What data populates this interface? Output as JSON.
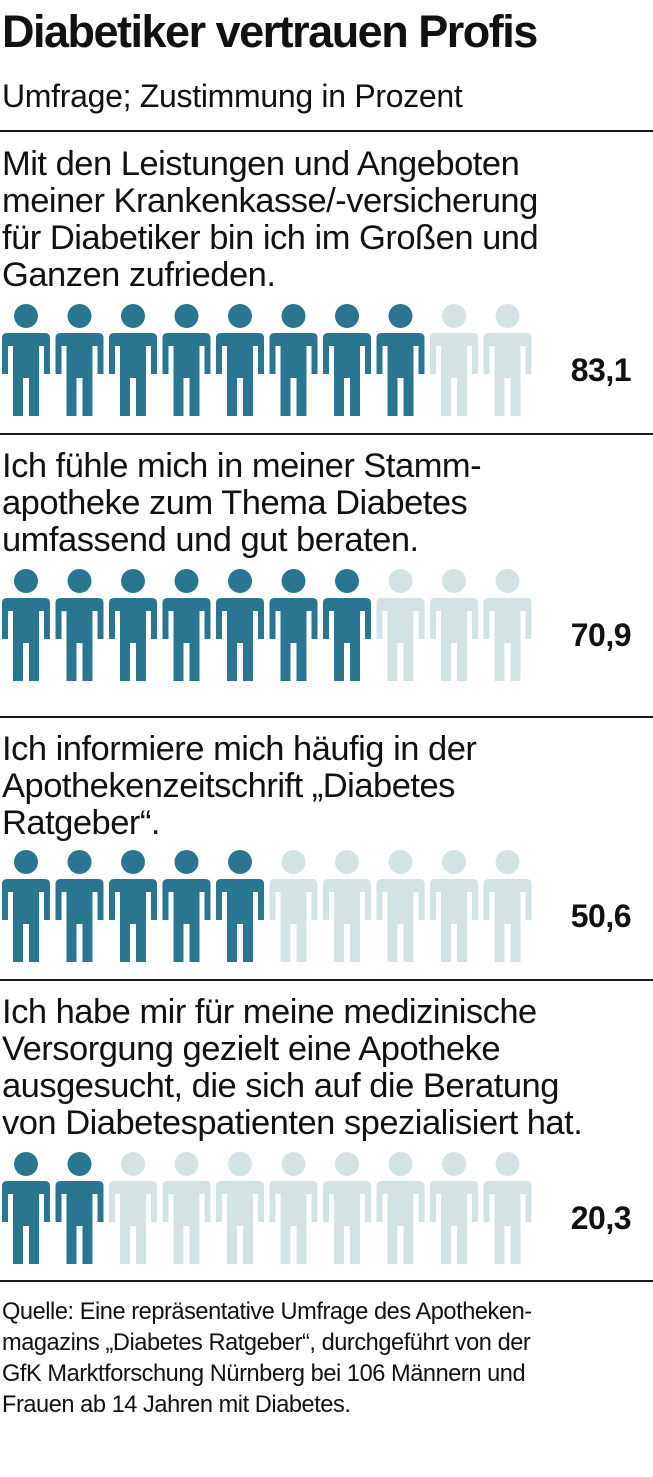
{
  "header": {
    "title": "Diabetiker vertrauen Profis",
    "subtitle": "Umfrage; Zustimmung in Prozent"
  },
  "colors": {
    "filled": "#2a7690",
    "empty": "#d3e3e4"
  },
  "chart_data": {
    "type": "pictogram",
    "unit": "Prozent",
    "icons_per_row": 10,
    "items": [
      {
        "lines": [
          "Mit den Leistungen und Angeboten",
          "meiner Krankenkasse/-versicherung",
          "für Diabetiker bin ich im Großen und",
          "Ganzen zufrieden."
        ],
        "value": 83.1,
        "label": "83,1",
        "filled_icons": 8
      },
      {
        "lines": [
          "Ich fühle mich in meiner Stamm-",
          "apotheke zum Thema Diabetes",
          "umfassend und gut beraten."
        ],
        "value": 70.9,
        "label": "70,9",
        "filled_icons": 7
      },
      {
        "lines": [
          "Ich informiere mich häufig in der",
          "Apothekenzeitschrift „Diabetes",
          "Ratgeber“."
        ],
        "value": 50.6,
        "label": "50,6",
        "filled_icons": 5
      },
      {
        "lines": [
          "Ich habe mir für meine medizinische",
          "Versorgung gezielt eine Apotheke",
          "ausgesucht, die sich auf die Beratung",
          "von Diabetespatienten spezialisiert hat."
        ],
        "value": 20.3,
        "label": "20,3",
        "filled_icons": 2
      }
    ]
  },
  "source": {
    "lines": [
      "Quelle: Eine repräsentative Umfrage des Apotheken-",
      "magazins „Diabetes Ratgeber“, durchgeführt von der",
      "GfK Marktforschung Nürnberg bei 106 Männern und",
      "Frauen ab 14 Jahren mit Diabetes."
    ]
  }
}
